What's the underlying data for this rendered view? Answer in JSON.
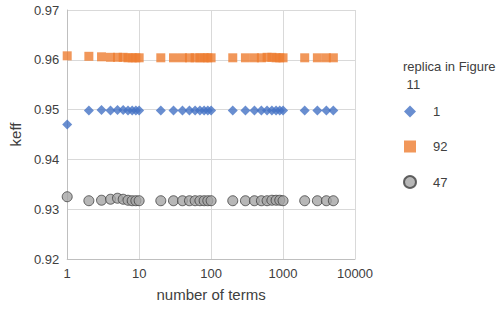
{
  "chart_data": {
    "type": "scatter",
    "x_label": "number of terms",
    "y_label": "keff",
    "legend_title": "replica in Figure 11",
    "legend": "right",
    "log": "x",
    "grid": true,
    "xlim": [
      1,
      10000
    ],
    "xticks": [
      1,
      10,
      100,
      1000,
      10000
    ],
    "ylim": [
      0.92,
      0.97
    ],
    "yticks": [
      0.92,
      0.93,
      0.94,
      0.95,
      0.96,
      0.97
    ],
    "x": [
      1,
      2,
      3,
      4,
      5,
      6,
      7,
      8,
      9,
      10,
      20,
      30,
      40,
      50,
      60,
      70,
      80,
      90,
      100,
      200,
      300,
      400,
      500,
      600,
      700,
      800,
      900,
      1000,
      2000,
      3000,
      4000,
      5000
    ],
    "series": [
      {
        "name": "1",
        "color": "#4472c4",
        "marker": "diamond",
        "values": [
          0.947,
          0.9498,
          0.9499,
          0.9498,
          0.9499,
          0.9499,
          0.9498,
          0.9498,
          0.9498,
          0.9498,
          0.9498,
          0.9498,
          0.9498,
          0.9498,
          0.9498,
          0.9498,
          0.9498,
          0.9498,
          0.9498,
          0.9498,
          0.9498,
          0.9498,
          0.9498,
          0.9498,
          0.9498,
          0.9498,
          0.9498,
          0.9498,
          0.9498,
          0.9498,
          0.9498,
          0.9498
        ]
      },
      {
        "name": "92",
        "color": "#ed7d31",
        "marker": "square",
        "values": [
          0.9608,
          0.9607,
          0.9606,
          0.9605,
          0.9605,
          0.9605,
          0.9604,
          0.9604,
          0.9604,
          0.9604,
          0.9604,
          0.9604,
          0.9604,
          0.9604,
          0.9604,
          0.9604,
          0.9604,
          0.9604,
          0.9604,
          0.9604,
          0.9604,
          0.9604,
          0.9604,
          0.9605,
          0.9605,
          0.9604,
          0.9604,
          0.9604,
          0.9604,
          0.9604,
          0.9604,
          0.9604
        ]
      },
      {
        "name": "47",
        "color": "#a5a5a5",
        "marker": "circle",
        "values": [
          0.9325,
          0.9317,
          0.9318,
          0.932,
          0.9322,
          0.932,
          0.9318,
          0.9317,
          0.9317,
          0.9317,
          0.9317,
          0.9317,
          0.9317,
          0.9317,
          0.9317,
          0.9317,
          0.9317,
          0.9317,
          0.9317,
          0.9317,
          0.9317,
          0.9317,
          0.9317,
          0.9317,
          0.9318,
          0.9318,
          0.9318,
          0.9317,
          0.9317,
          0.9317,
          0.9317,
          0.9317
        ]
      }
    ]
  }
}
